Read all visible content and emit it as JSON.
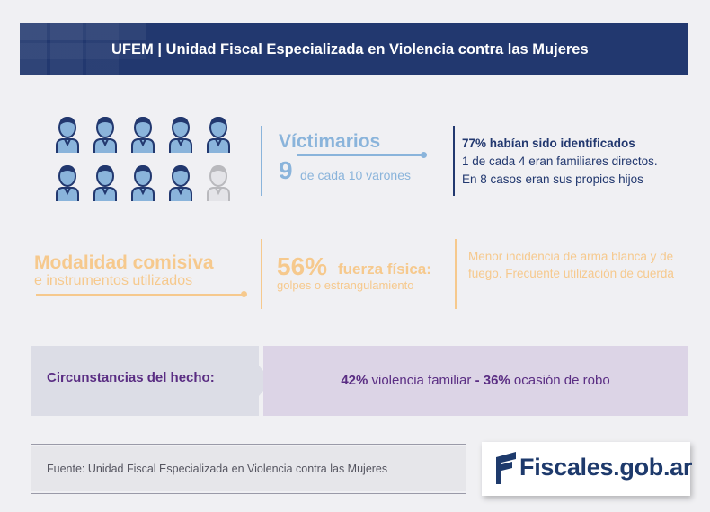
{
  "header": {
    "title": "UFEM | Unidad Fiscal Especializada en Violencia contra las Mujeres"
  },
  "victimarios": {
    "title": "Víctimarios",
    "number": "9",
    "subtitle": "de cada 10 varones",
    "icons_total": 10,
    "icons_highlighted": 9,
    "facts_bold": "77% habían sido identificados",
    "fact_2": "1 de cada 4 eran familiares directos.",
    "fact_3": "En 8 casos eran sus propios hijos"
  },
  "modalidad": {
    "title": "Modalidad comisiva",
    "subtitle": "e instrumentos utilizados",
    "percent": "56%",
    "percent_label": "fuerza física:",
    "percent_sub": "golpes o estrangulamiento",
    "note": "Menor incidencia de arma blanca y de fuego. Frecuente utilización de cuerda"
  },
  "circunstancias": {
    "label": "Circunstancias del hecho:",
    "pct1": "42%",
    "text1": " violencia familiar ",
    "sep": "-",
    "pct2": "36%",
    "text2": " ocasión de robo"
  },
  "footer": {
    "source": "Fuente: Unidad Fiscal Especializada en Violencia contra las Mujeres",
    "logo_text": "Fiscales.gob.ar"
  },
  "colors": {
    "navy": "#22386f",
    "light_blue": "#8ab4db",
    "orange": "#f6c98d",
    "purple": "#5a2d83",
    "icon_grey": "#b9b9bd"
  }
}
